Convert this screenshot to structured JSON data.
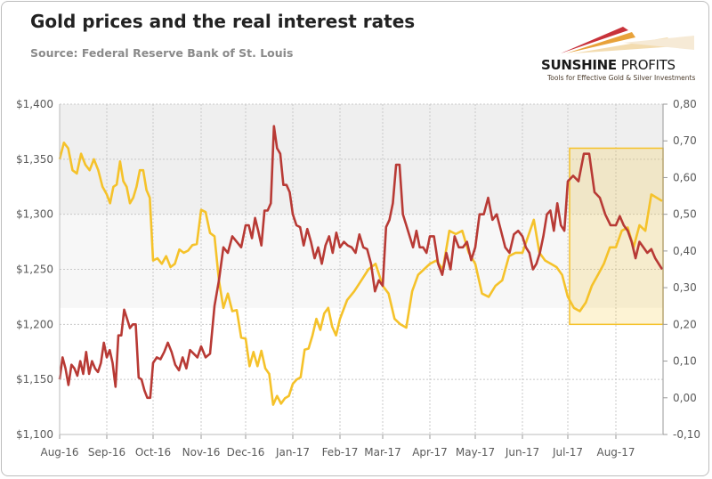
{
  "header": {
    "title": "Gold prices and the real interest rates",
    "source": "Source: Federal Reserve Bank of St. Louis"
  },
  "logo": {
    "name_bold": "SUNSHINE",
    "name_light": "PROFITS",
    "tagline": "Tools for Effective Gold & Silver Investments"
  },
  "chart_data": {
    "type": "line",
    "title": "",
    "xlabel": "",
    "months": [
      "Aug-16",
      "Sep-16",
      "Oct-16",
      "Nov-16",
      "Dec-16",
      "Jan-17",
      "Feb-17",
      "Mar-17",
      "Apr-17",
      "May-17",
      "Jun-17",
      "Jul-17",
      "Aug-17"
    ],
    "left_axis": {
      "min": 1100,
      "max": 1400,
      "step": 50,
      "ticks": [
        "$1,100",
        "$1,150",
        "$1,200",
        "$1,250",
        "$1,300",
        "$1,350",
        "$1,400"
      ]
    },
    "right_axis": {
      "min": -0.1,
      "max": 0.8,
      "step": 0.1,
      "ticks": [
        "-0,10",
        "0,00",
        "0,10",
        "0,20",
        "0,30",
        "0,40",
        "0,50",
        "0,60",
        "0,70",
        "0,80"
      ]
    },
    "grid": true,
    "legend": "none",
    "shaded_bands": [
      {
        "from": 1300,
        "to": 1400,
        "axis": "left",
        "color": "#efefef"
      },
      {
        "from": 1215,
        "to": 1300,
        "axis": "left",
        "color": "#f7f7f7"
      }
    ],
    "highlight_box": {
      "from_month": "Jul-17",
      "to": "end",
      "rate_from": 0.2,
      "rate_to": 0.68,
      "color": "#f5c22a"
    },
    "series": [
      {
        "axis": "left",
        "color": "#f5c22a",
        "values_by_month": [
          [
            1350,
            1365,
            1360,
            1340,
            1337,
            1355,
            1345,
            1340,
            1350,
            1340,
            1325
          ],
          [
            1318,
            1310,
            1325,
            1327,
            1348,
            1330,
            1325,
            1310,
            1315,
            1325,
            1340,
            1340,
            1322,
            1315
          ],
          [
            1258,
            1260,
            1255,
            1262,
            1252,
            1255,
            1268,
            1265,
            1267,
            1272,
            1273
          ],
          [
            1304,
            1302,
            1283,
            1280,
            1240,
            1215,
            1228,
            1212,
            1213,
            1188
          ],
          [
            1187,
            1162,
            1175,
            1162,
            1176,
            1160,
            1155,
            1127,
            1135,
            1128,
            1133,
            1135
          ],
          [
            1146,
            1150,
            1152,
            1177,
            1178,
            1190,
            1205,
            1195,
            1210,
            1215,
            1198,
            1190
          ],
          [
            1205,
            1222,
            1230,
            1240,
            1250,
            1255
          ],
          [
            1235,
            1228,
            1205,
            1200,
            1197,
            1230,
            1245,
            1250
          ],
          [
            1255,
            1258,
            1250,
            1285,
            1282,
            1285,
            1265
          ],
          [
            1255,
            1228,
            1225,
            1235,
            1240,
            1262,
            1265
          ],
          [
            1265,
            1280,
            1295,
            1265,
            1258,
            1255,
            1252,
            1245
          ],
          [
            1225,
            1215,
            1212,
            1220,
            1235,
            1245,
            1255,
            1270
          ],
          [
            1270,
            1285,
            1288,
            1270,
            1290,
            1285,
            1318,
            1312
          ]
        ]
      },
      {
        "axis": "right",
        "color": "#b83a35",
        "values_by_month": [
          [
            0.05,
            0.11,
            0.08,
            0.035,
            0.09,
            0.08,
            0.06,
            0.1,
            0.065,
            0.125,
            0.065,
            0.1,
            0.08,
            0.07,
            0.095,
            0.15
          ],
          [
            0.11,
            0.13,
            0.095,
            0.03,
            0.17,
            0.17,
            0.24,
            0.215,
            0.19,
            0.2,
            0.2,
            0.055,
            0.05,
            0.02,
            0.0,
            0.0
          ],
          [
            0.095,
            0.11,
            0.105,
            0.125,
            0.15,
            0.125,
            0.09,
            0.075,
            0.11,
            0.08,
            0.13,
            0.12,
            0.11
          ],
          [
            0.14,
            0.11,
            0.12,
            0.25,
            0.32,
            0.41,
            0.395,
            0.44,
            0.425,
            0.41
          ],
          [
            0.47,
            0.47,
            0.435,
            0.49,
            0.455,
            0.415,
            0.51,
            0.51,
            0.53,
            0.74,
            0.68,
            0.665,
            0.58,
            0.58,
            0.56
          ],
          [
            0.5,
            0.47,
            0.465,
            0.415,
            0.46,
            0.425,
            0.38,
            0.41,
            0.365,
            0.415,
            0.44,
            0.395,
            0.45
          ],
          [
            0.41,
            0.425,
            0.415,
            0.41,
            0.395,
            0.445,
            0.41,
            0.405,
            0.365,
            0.29,
            0.32
          ],
          [
            0.305,
            0.465,
            0.485,
            0.53,
            0.635,
            0.635,
            0.5,
            0.47,
            0.44,
            0.41,
            0.455,
            0.41,
            0.41,
            0.395
          ],
          [
            0.44,
            0.44,
            0.365,
            0.335,
            0.395,
            0.35,
            0.44,
            0.41,
            0.41,
            0.425,
            0.375
          ],
          [
            0.41,
            0.5,
            0.5,
            0.545,
            0.485,
            0.5,
            0.455,
            0.41,
            0.395,
            0.445,
            0.455
          ],
          [
            0.44,
            0.41,
            0.395,
            0.35,
            0.365,
            0.395,
            0.44,
            0.5,
            0.51,
            0.455,
            0.53,
            0.47,
            0.455
          ],
          [
            0.59,
            0.605,
            0.59,
            0.665,
            0.665,
            0.56,
            0.545,
            0.5,
            0.47
          ],
          [
            0.47,
            0.495,
            0.47,
            0.455,
            0.425,
            0.38,
            0.425,
            0.41,
            0.395,
            0.405,
            0.38,
            0.35
          ]
        ]
      }
    ]
  }
}
